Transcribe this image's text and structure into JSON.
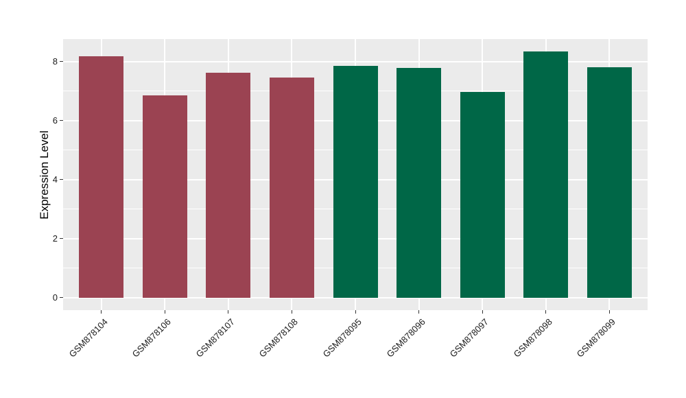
{
  "figure": {
    "background": "#FFFFFF",
    "panel_background": "#EBEBEB",
    "gridline_color": "#FFFFFF",
    "tick_color": "#333333",
    "text_color": "#1a1a1a"
  },
  "chart_data": {
    "type": "bar",
    "title": "",
    "xlabel": "",
    "ylabel": "Expression Level",
    "categories": [
      "GSM878104",
      "GSM878106",
      "GSM878107",
      "GSM878108",
      "GSM878095",
      "GSM878096",
      "GSM878097",
      "GSM878098",
      "GSM878099"
    ],
    "values": [
      8.18,
      6.85,
      7.63,
      7.45,
      7.85,
      7.79,
      6.97,
      8.34,
      7.81
    ],
    "bar_groups": [
      "group1",
      "group1",
      "group1",
      "group1",
      "group2",
      "group2",
      "group2",
      "group2",
      "group2"
    ],
    "group_colors": {
      "group1": "#9B4352",
      "group2": "#006747"
    },
    "y_ticks": [
      0,
      2,
      4,
      6,
      8
    ],
    "y_tick_labels": [
      "0",
      "2",
      "4",
      "6",
      "8"
    ],
    "y_minor_ticks": [
      1,
      3,
      5,
      7
    ],
    "ylim": [
      -0.42,
      8.76
    ],
    "grid": true,
    "legend_position": "none",
    "x_tick_angle": 45
  }
}
